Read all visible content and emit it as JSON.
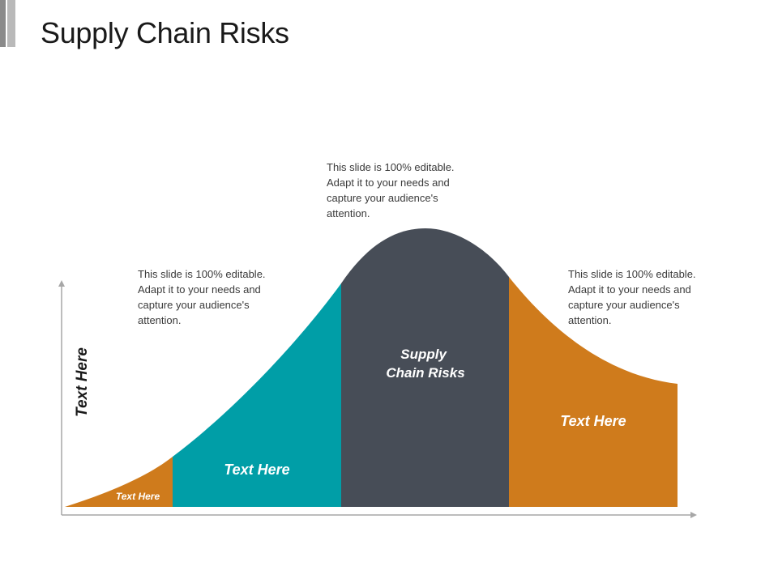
{
  "title": "Supply Chain Risks",
  "y_axis_label": "Text Here",
  "descriptions": [
    "This slide is 100% editable. Adapt it to your needs and capture your audience's attention.",
    "This slide is 100% editable. Adapt it to your needs and capture your audience's attention.",
    "This slide is 100% editable. Adapt it to your needs and capture your audience's attention."
  ],
  "segments": [
    {
      "label": "Text Here",
      "color": "#cf7b1c"
    },
    {
      "label": "Text Here",
      "color": "#009ea7"
    },
    {
      "label_lines": [
        "Supply",
        "Chain Risks"
      ],
      "color": "#474d57"
    },
    {
      "label": "Text Here",
      "color": "#cf7b1c"
    }
  ],
  "colors": {
    "axis": "#a7a7a7"
  }
}
